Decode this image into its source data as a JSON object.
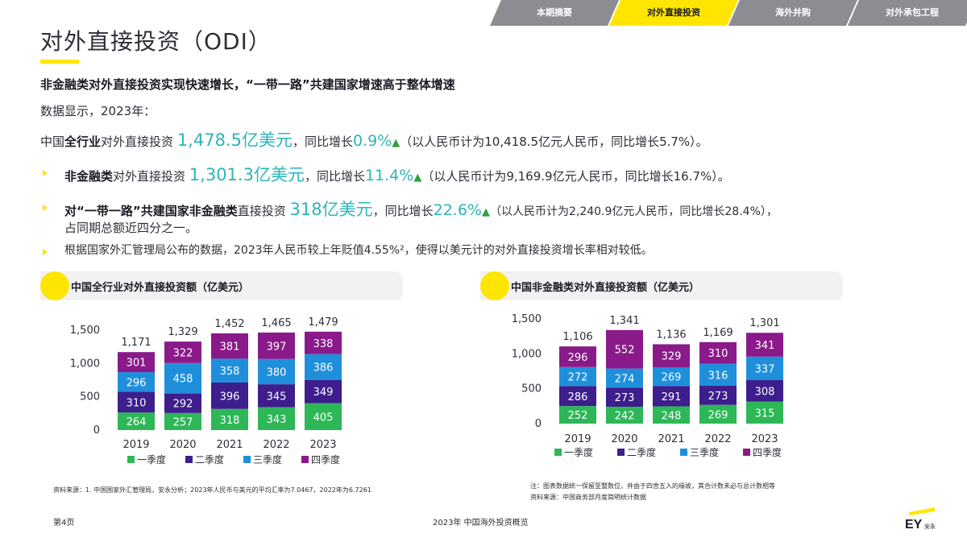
{
  "tabs": [
    {
      "label": "本期摘要",
      "active": false
    },
    {
      "label": "对外直接投资",
      "active": true
    },
    {
      "label": "海外并购",
      "active": false
    },
    {
      "label": "对外承包工程",
      "active": false
    }
  ],
  "title": "对外直接投资（ODI）",
  "headline": "非金融类对外直接投资实现快速增长，“一带一路”共建国家增速高于整体增速",
  "intro": "数据显示，2023年：",
  "line1": {
    "pre": "中国",
    "bold": "全行业",
    "mid": "对外直接投资 ",
    "amount": "1,478.5亿美元",
    "growth_pre": "，同比增长",
    "growth": "0.9%",
    "tail": "（以人民币计为10,418.5亿元人民币，同比增长5.7%）。"
  },
  "line2": {
    "bold": "非金融类",
    "mid": "对外直接投资 ",
    "amount": "1,301.3亿美元",
    "growth_pre": "，同比增长",
    "growth": "11.4%",
    "tail": "（以人民币计为9,169.9亿元人民币，同比增长16.7%）。"
  },
  "line3": {
    "bold": "对“一带一路”共建国家非金融类",
    "mid": "直接投资 ",
    "amount": "318亿美元",
    "growth_pre": "，同比增长",
    "growth": "22.6%",
    "tail": "（以人民币计为2,240.9亿元人民币，同比增长28.4%），",
    "cont": "占同期总额近四分之一。"
  },
  "line4": "根据国家外汇管理局公布的数据，2023年人民币较上年贬值4.55%²，使得以美元计的对外直接投资增长率相对较低。",
  "triangle": "▲",
  "colors": {
    "q1": "#2db757",
    "q2": "#3d1e8c",
    "q3": "#1f8fdc",
    "q4": "#8a1a8a",
    "accent": "#ffe600",
    "teal": "#2bb5b8",
    "tab_gray": "#8c8c93"
  },
  "chart_data": [
    {
      "type": "bar",
      "stacked": true,
      "title": "中国全行业对外直接投资额（亿美元）",
      "categories": [
        "2019",
        "2020",
        "2021",
        "2022",
        "2023"
      ],
      "series": [
        {
          "name": "一季度",
          "values": [
            264,
            257,
            318,
            343,
            405
          ]
        },
        {
          "name": "二季度",
          "values": [
            310,
            292,
            396,
            345,
            349
          ]
        },
        {
          "name": "三季度",
          "values": [
            296,
            458,
            358,
            380,
            386
          ]
        },
        {
          "name": "四季度",
          "values": [
            301,
            322,
            381,
            397,
            338
          ]
        }
      ],
      "totals": [
        "1,171",
        "1,329",
        "1,452",
        "1,465",
        "1,479"
      ],
      "yticks": [
        "0",
        "500",
        "1,000",
        "1,500"
      ],
      "ylim": [
        0,
        1500
      ],
      "legend": "bottom",
      "grid": false
    },
    {
      "type": "bar",
      "stacked": true,
      "title": "中国非金融类对外直接投资额（亿美元）",
      "categories": [
        "2019",
        "2020",
        "2021",
        "2022",
        "2023"
      ],
      "series": [
        {
          "name": "一季度",
          "values": [
            252,
            242,
            248,
            269,
            315
          ]
        },
        {
          "name": "二季度",
          "values": [
            286,
            273,
            291,
            273,
            308
          ]
        },
        {
          "name": "三季度",
          "values": [
            272,
            274,
            269,
            316,
            337
          ]
        },
        {
          "name": "四季度",
          "values": [
            296,
            552,
            329,
            310,
            341
          ]
        }
      ],
      "totals": [
        "1,106",
        "1,341",
        "1,136",
        "1,169",
        "1,301"
      ],
      "yticks": [
        "0",
        "500",
        "1,000",
        "1,500"
      ],
      "ylim": [
        0,
        1500
      ],
      "legend": "bottom",
      "grid": false
    }
  ],
  "footnote_left": "资料来源：1. 中国国家外汇管理局，安永分析；2023年人民币与美元的平均汇率为7.0467，2022年为6.7261",
  "footnote_right_1": "注：图表数据统一保留至整数位，并由于四舍五入的缘故，其合计数未必与总计数相等",
  "footnote_right_2": "资料来源：中国商务部月度简明统计数据",
  "page_no": "第4页",
  "footer_title": "2023年 中国海外投资概览",
  "logo_text": "EY",
  "logo_sub": "安永"
}
